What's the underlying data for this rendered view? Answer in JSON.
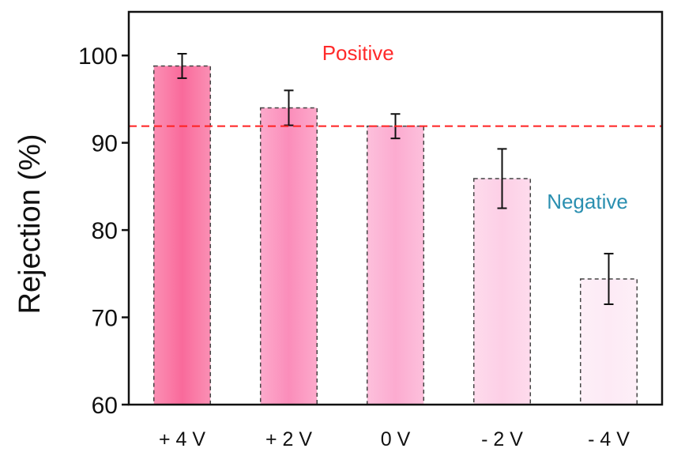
{
  "chart_data": {
    "type": "bar",
    "title": "",
    "xlabel": "",
    "ylabel": "Rejection (%)",
    "categories": [
      "+ 4 V",
      "+ 2 V",
      "0 V",
      "- 2 V",
      "- 4 V"
    ],
    "values": [
      98.8,
      94.0,
      91.9,
      85.9,
      74.4
    ],
    "errors": [
      1.4,
      2.0,
      1.4,
      3.4,
      2.9
    ],
    "ylim": [
      60,
      105
    ],
    "yticks": [
      60,
      70,
      80,
      90,
      100
    ],
    "reference_line": {
      "y": 91.9,
      "color": "#ff2020",
      "style": "dashed"
    },
    "bar_colors": [
      "#f96a9b",
      "#fb8dba",
      "#fcabd0",
      "#fdcfe6",
      "#fdeaf5"
    ],
    "annotations": [
      {
        "text": "Positive",
        "color": "#ff2a2a"
      },
      {
        "text": "Negative",
        "color": "#2a8fb0"
      }
    ],
    "grid": false,
    "legend": "none"
  }
}
